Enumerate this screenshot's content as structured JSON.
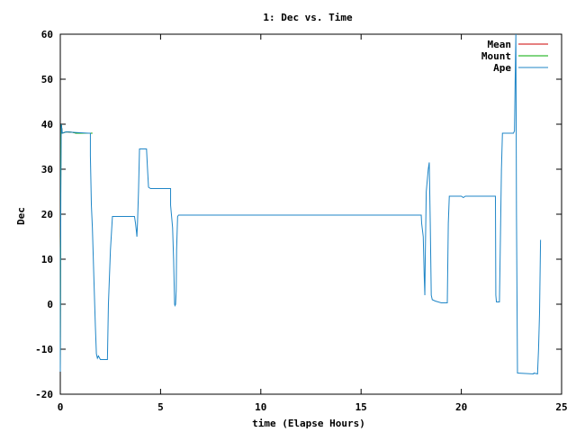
{
  "chart_data": {
    "type": "line",
    "title": "1: Dec vs. Time",
    "xlabel": "time (Elapse Hours)",
    "ylabel": "Dec",
    "xlim": [
      0,
      25
    ],
    "ylim": [
      -20,
      60
    ],
    "x_ticks": [
      0,
      5,
      10,
      15,
      20,
      25
    ],
    "y_ticks": [
      -20,
      -10,
      0,
      10,
      20,
      30,
      40,
      50,
      60
    ],
    "grid": false,
    "legend_position": "top-right",
    "series": [
      {
        "name": "Mean",
        "color": "#cc0000",
        "points": [
          [
            0,
            -15
          ],
          [
            0.03,
            38
          ],
          [
            0.05,
            40
          ],
          [
            0.1,
            38
          ],
          [
            0.3,
            38.3
          ],
          [
            0.6,
            38.2
          ],
          [
            0.8,
            38
          ],
          [
            1.4,
            38
          ],
          [
            1.6,
            38
          ]
        ]
      },
      {
        "name": "Mount",
        "color": "#00aa00",
        "points": [
          [
            0,
            -15
          ],
          [
            0.03,
            38
          ],
          [
            0.05,
            40
          ],
          [
            0.1,
            38
          ],
          [
            0.3,
            38.3
          ],
          [
            0.6,
            38.2
          ],
          [
            0.8,
            38
          ],
          [
            1.4,
            38
          ],
          [
            1.6,
            38
          ]
        ]
      },
      {
        "name": "Ape",
        "color": "#1f86c7",
        "points": [
          [
            0,
            -15
          ],
          [
            0.01,
            12
          ],
          [
            0.02,
            15
          ],
          [
            0.03,
            28
          ],
          [
            0.05,
            40
          ],
          [
            0.1,
            38
          ],
          [
            0.3,
            38.3
          ],
          [
            0.6,
            38.2
          ],
          [
            1.4,
            38
          ],
          [
            1.5,
            38
          ],
          [
            1.5,
            33
          ],
          [
            1.55,
            22
          ],
          [
            1.6,
            17
          ],
          [
            1.68,
            5
          ],
          [
            1.75,
            -5
          ],
          [
            1.8,
            -11
          ],
          [
            1.85,
            -12
          ],
          [
            1.9,
            -11.5
          ],
          [
            2.0,
            -12.3
          ],
          [
            2.3,
            -12.3
          ],
          [
            2.35,
            -12.3
          ],
          [
            2.4,
            0
          ],
          [
            2.5,
            12
          ],
          [
            2.6,
            19.5
          ],
          [
            3.7,
            19.5
          ],
          [
            3.75,
            18
          ],
          [
            3.8,
            16
          ],
          [
            3.82,
            15
          ],
          [
            3.85,
            18
          ],
          [
            3.9,
            25
          ],
          [
            3.95,
            34.5
          ],
          [
            4.3,
            34.5
          ],
          [
            4.35,
            30
          ],
          [
            4.4,
            26
          ],
          [
            4.5,
            25.7
          ],
          [
            5.5,
            25.7
          ],
          [
            5.5,
            22
          ],
          [
            5.6,
            17
          ],
          [
            5.65,
            10
          ],
          [
            5.7,
            0
          ],
          [
            5.72,
            -0.3
          ],
          [
            5.75,
            0
          ],
          [
            5.78,
            3
          ],
          [
            5.8,
            12
          ],
          [
            5.85,
            19.5
          ],
          [
            5.9,
            19.8
          ],
          [
            18.0,
            19.8
          ],
          [
            18.02,
            18
          ],
          [
            18.1,
            15
          ],
          [
            18.15,
            6
          ],
          [
            18.18,
            2
          ],
          [
            18.2,
            10
          ],
          [
            18.25,
            25
          ],
          [
            18.35,
            30
          ],
          [
            18.4,
            31.5
          ],
          [
            18.45,
            18
          ],
          [
            18.5,
            2
          ],
          [
            18.55,
            1
          ],
          [
            18.7,
            0.7
          ],
          [
            19.0,
            0.3
          ],
          [
            19.3,
            0.3
          ],
          [
            19.35,
            18
          ],
          [
            19.4,
            24
          ],
          [
            20.0,
            24
          ],
          [
            20.1,
            23.7
          ],
          [
            20.2,
            24
          ],
          [
            21.7,
            24
          ],
          [
            21.72,
            2
          ],
          [
            21.75,
            0.5
          ],
          [
            21.9,
            0.5
          ],
          [
            21.95,
            15
          ],
          [
            22.0,
            30
          ],
          [
            22.05,
            38
          ],
          [
            22.6,
            38
          ],
          [
            22.65,
            38.5
          ],
          [
            22.7,
            55
          ],
          [
            22.72,
            60
          ],
          [
            22.75,
            20
          ],
          [
            22.8,
            -15.3
          ],
          [
            23.6,
            -15.5
          ],
          [
            23.62,
            -15.3
          ],
          [
            23.8,
            -15.5
          ],
          [
            23.85,
            -10
          ],
          [
            23.9,
            -2
          ],
          [
            23.95,
            14.3
          ]
        ]
      }
    ]
  }
}
